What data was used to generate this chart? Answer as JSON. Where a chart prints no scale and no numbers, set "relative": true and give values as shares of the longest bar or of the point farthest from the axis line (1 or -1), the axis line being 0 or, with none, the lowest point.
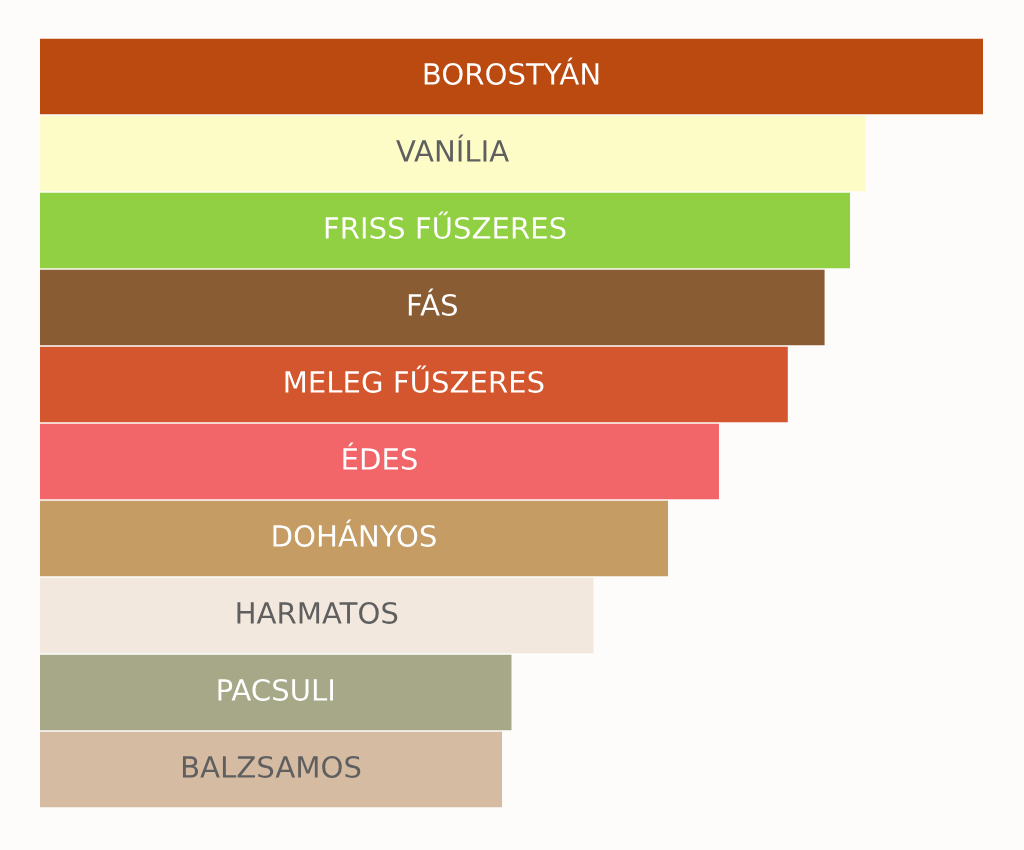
{
  "chart_data": {
    "type": "bar",
    "orientation": "horizontal",
    "relative": true,
    "categories": [
      "BOROSTYÁN",
      "VANÍLIA",
      "FRISS FŰSZERES",
      "FÁS",
      "MELEG FŰSZERES",
      "ÉDES",
      "DOHÁNYOS",
      "HARMATOS",
      "PACSULI",
      "BALZSAMOS"
    ],
    "values": [
      1,
      0.875,
      0.859,
      0.832,
      0.793,
      0.72,
      0.666,
      0.587,
      0.5,
      0.49
    ],
    "colors": [
      "#bb4a10",
      "#fdfcc6",
      "#90d042",
      "#8a5c34",
      "#d4562e",
      "#f26669",
      "#c49c64",
      "#f3e8de",
      "#a6a888",
      "#d5bba2"
    ],
    "data_labels": false
  }
}
